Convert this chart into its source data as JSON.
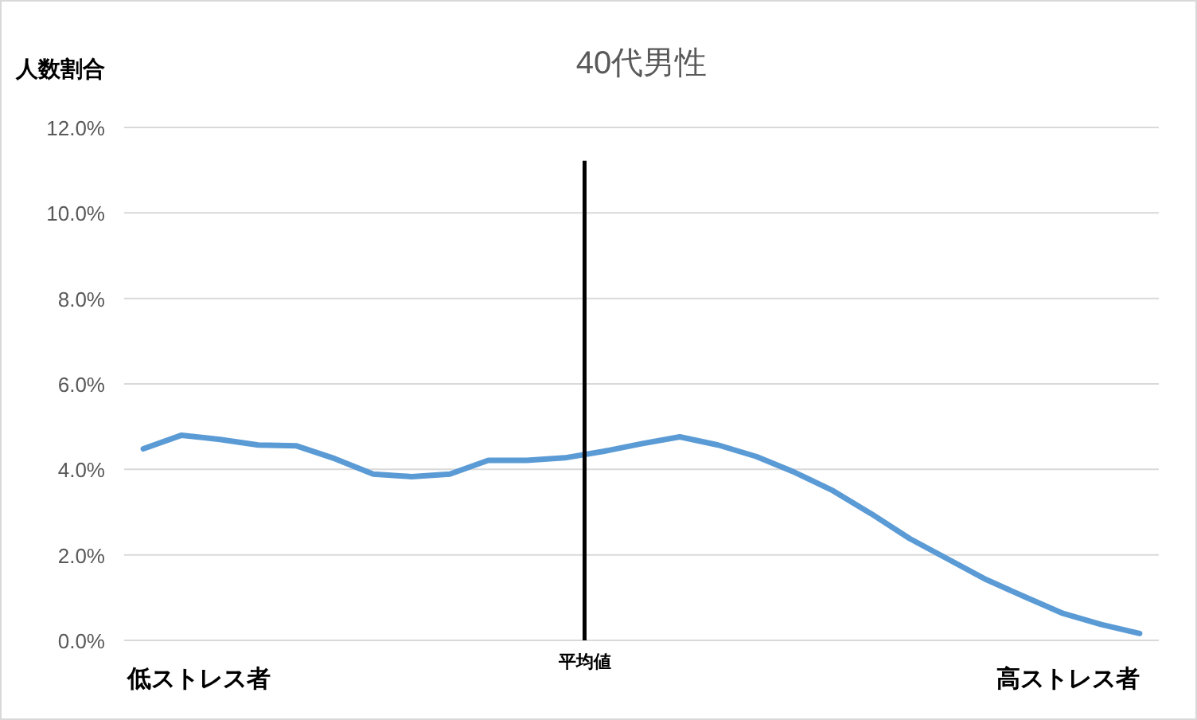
{
  "chart_data": {
    "type": "line",
    "title": "40代男性",
    "ylabel": "人数割合",
    "categories": [
      null,
      null,
      null,
      null,
      null,
      null,
      null,
      null,
      null,
      null,
      null,
      null,
      null,
      null,
      null,
      null,
      null,
      null,
      null,
      null,
      null,
      null,
      null,
      null,
      null,
      null,
      null
    ],
    "annotations": [
      "低ストレス者",
      "平均値",
      "高ストレス者"
    ],
    "series": [
      {
        "color": "#5b9bd5",
        "values": [
          4.48,
          4.8,
          4.7,
          4.57,
          4.55,
          4.25,
          3.89,
          3.83,
          3.89,
          4.21,
          4.21,
          4.27,
          4.42,
          4.6,
          4.76,
          4.57,
          4.3,
          3.93,
          3.5,
          2.96,
          2.38,
          1.9,
          1.42,
          1.02,
          0.63,
          0.37,
          0.16
        ]
      }
    ],
    "ylim": [
      0,
      12
    ],
    "yticks": [
      {
        "value": 0,
        "label": "0.0%"
      },
      {
        "value": 2,
        "label": "2.0%"
      },
      {
        "value": 4,
        "label": "4.0%"
      },
      {
        "value": 6,
        "label": "6.0%"
      },
      {
        "value": 8,
        "label": "8.0%"
      },
      {
        "value": 10,
        "label": "10.0%"
      },
      {
        "value": 12,
        "label": "12.0%"
      }
    ],
    "grid": "y",
    "marker": "none",
    "line_style": "solid"
  }
}
